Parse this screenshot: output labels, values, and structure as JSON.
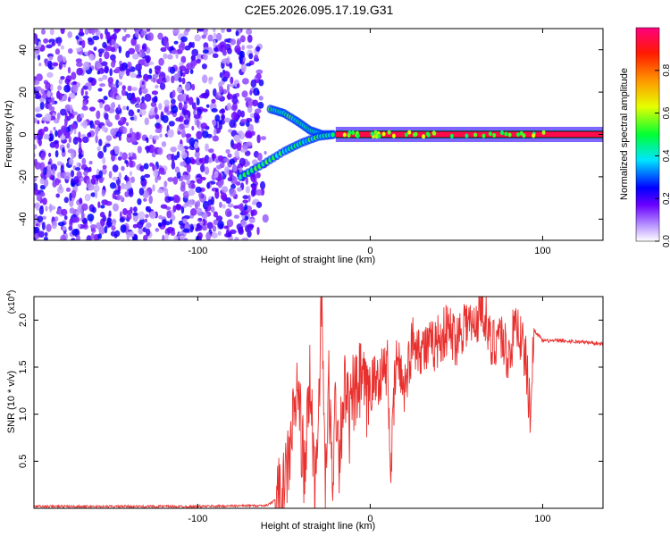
{
  "title": "C2E5.2026.095.17.19.G31",
  "colors": {
    "trace": "#e8302e",
    "noise": "#6a1fd0",
    "band": "#ff2a55",
    "frame": "#000000"
  },
  "chart_data": [
    {
      "type": "heatmap",
      "title": "C2E5.2026.095.17.19.G31",
      "xlabel": "Height of straight line (km)",
      "ylabel": "Frequency (Hz)",
      "xlim": [
        -195,
        135
      ],
      "ylim": [
        -50,
        50
      ],
      "x_ticks": [
        -100,
        0,
        100
      ],
      "y_ticks": [
        40,
        20,
        0,
        -20,
        -40
      ],
      "colorbar": {
        "label": "Normalized spectral amplitude",
        "range": [
          0,
          1
        ],
        "ticks": [
          "0.0",
          "0.2",
          "0.4",
          "0.6",
          "0.8"
        ],
        "stops": [
          "#ffffff",
          "#7f00ff",
          "#0000ff",
          "#00ffff",
          "#00ff00",
          "#ffff00",
          "#ff8000",
          "#ff0000",
          "#ff0080"
        ]
      },
      "features": {
        "noise_region_km": [
          -195,
          -60
        ],
        "noise_amplitude": 0.2,
        "fork": [
          {
            "x": [
              -58,
              -50,
              -42,
              -35,
              -28,
              -20
            ],
            "y": [
              12,
              10,
              6,
              2,
              0,
              0
            ]
          },
          {
            "x": [
              -75,
              -62,
              -50,
              -40,
              -30,
              -20
            ],
            "y": [
              -20,
              -14,
              -8,
              -4,
              -1,
              0
            ]
          }
        ],
        "steady_band": {
          "x": [
            -20,
            135
          ],
          "y": 0,
          "half_width_hz": 1.5,
          "amplitude": 0.95
        }
      }
    },
    {
      "type": "line",
      "xlabel": "Height of straight line (km)",
      "ylabel": "SNR (10 * v/v)",
      "y_scale_label": "(x10",
      "y_scale_exponent": "4",
      "ylabel_multiplier": 10000,
      "xlim": [
        -195,
        135
      ],
      "ylim": [
        0,
        2.25
      ],
      "x_ticks": [
        -100,
        0,
        100
      ],
      "y_ticks": [
        "0.5",
        "1.0",
        "1.5",
        "2.0"
      ],
      "y_tick_values": [
        0.5,
        1.0,
        1.5,
        2.0
      ],
      "series": [
        {
          "x": [
            -195,
            -150,
            -100,
            -60,
            -50,
            -42,
            -38,
            -35,
            -32,
            -30,
            -28,
            -26,
            -24,
            -22,
            -20,
            -18,
            -15,
            -12,
            -10,
            -8,
            -5,
            -2,
            0,
            5,
            10,
            12,
            15,
            20,
            25,
            30,
            35,
            40,
            45,
            50,
            55,
            60,
            65,
            70,
            75,
            80,
            85,
            90,
            93,
            95,
            100,
            110,
            120,
            135
          ],
          "y": [
            0.02,
            0.02,
            0.02,
            0.03,
            0.15,
            1.3,
            0.3,
            1.4,
            0.2,
            1.1,
            2.2,
            0.1,
            1.3,
            0.3,
            1.2,
            0.6,
            1.3,
            0.9,
            1.2,
            1.2,
            1.4,
            1.1,
            1.3,
            1.4,
            1.5,
            0.4,
            1.6,
            1.3,
            1.8,
            1.7,
            1.7,
            1.8,
            1.9,
            1.8,
            2.0,
            1.9,
            2.2,
            1.7,
            1.9,
            1.6,
            2.0,
            1.6,
            1.0,
            1.9,
            1.78,
            1.78,
            1.77,
            1.75
          ]
        }
      ]
    }
  ]
}
